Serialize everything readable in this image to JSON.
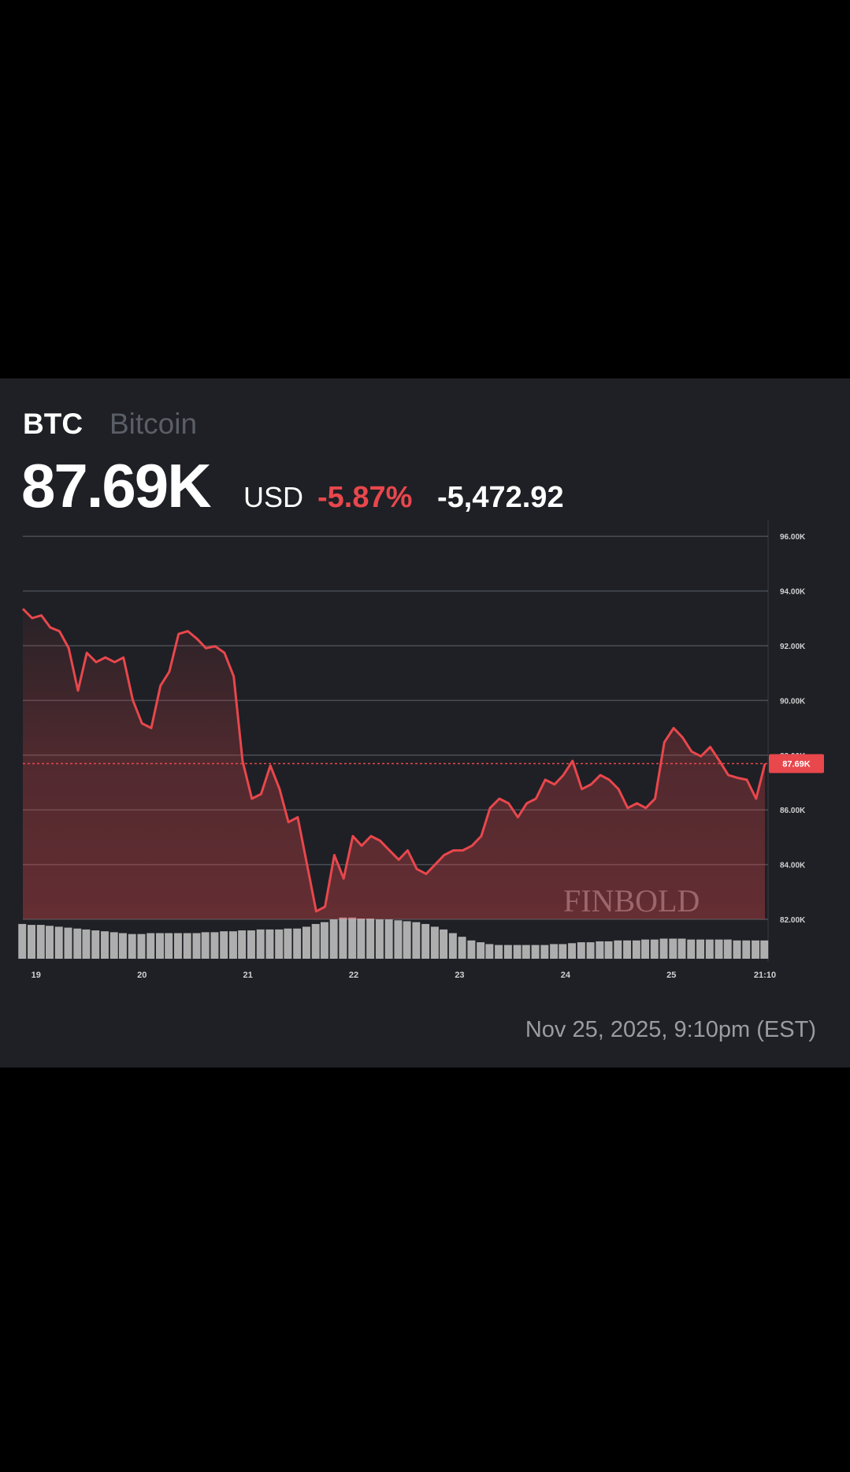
{
  "header": {
    "symbol": "BTC",
    "name": "Bitcoin",
    "price": "87.69K",
    "currency": "USD",
    "change_pct": "-5.87%",
    "change_abs": "-5,472.92"
  },
  "chart_data": {
    "type": "line",
    "x": [
      -3.0,
      -0.9,
      1.2,
      3.2,
      5.3,
      7.4,
      9.5,
      11.5,
      13.6,
      15.7,
      17.8,
      19.8,
      21.9,
      24.0,
      26.1,
      28.2,
      30.2,
      32.3,
      34.4,
      36.5,
      38.5,
      40.6,
      42.7,
      44.8,
      46.8,
      48.9,
      51.0,
      53.1,
      55.2,
      57.2,
      59.3,
      61.4,
      63.5,
      65.5,
      67.6,
      69.7,
      71.8,
      73.8,
      75.9,
      78.0,
      80.1,
      82.2,
      84.2,
      86.3,
      88.4,
      90.5,
      92.5,
      94.6,
      96.7,
      98.8,
      100.9,
      102.9,
      105.0,
      107.1,
      109.2,
      111.2,
      113.3,
      115.4,
      117.5,
      119.5,
      121.6,
      123.7,
      125.8,
      127.9,
      129.9,
      132.0,
      134.1,
      136.2,
      138.2,
      140.3,
      142.4,
      144.5,
      146.5,
      148.6,
      150.7,
      152.8,
      154.9,
      156.9,
      159.0,
      161.1,
      163.2,
      165.2
    ],
    "series": [
      {
        "name": "BTC",
        "color": "#e8474c",
        "values": [
          93350,
          93010,
          93110,
          92670,
          92530,
          91910,
          90360,
          91740,
          91400,
          91570,
          91400,
          91570,
          90020,
          89160,
          88990,
          90540,
          91050,
          92430,
          92530,
          92250,
          91910,
          91980,
          91740,
          90880,
          87790,
          86410,
          86580,
          87620,
          86760,
          85550,
          85730,
          84010,
          82290,
          82460,
          84350,
          83490,
          85040,
          84690,
          85040,
          84870,
          84520,
          84180,
          84520,
          83840,
          83660,
          84010,
          84350,
          84520,
          84520,
          84690,
          85040,
          86070,
          86410,
          86240,
          85730,
          86240,
          86410,
          87100,
          86930,
          87270,
          87790,
          86760,
          86930,
          87270,
          87100,
          86760,
          86070,
          86240,
          86070,
          86410,
          88470,
          88990,
          88650,
          88130,
          87960,
          88300,
          87790,
          87270,
          87170,
          87100,
          86410,
          87690
        ]
      }
    ],
    "volume": {
      "color": "#c8c8c8",
      "values": [
        38,
        37,
        37,
        36,
        35,
        34,
        33,
        32,
        31,
        30,
        29,
        28,
        27,
        27,
        28,
        28,
        28,
        28,
        28,
        28,
        29,
        29,
        30,
        30,
        31,
        31,
        32,
        32,
        32,
        33,
        33,
        35,
        38,
        40,
        43,
        45,
        45,
        44,
        44,
        43,
        43,
        42,
        41,
        40,
        38,
        35,
        32,
        28,
        24,
        20,
        18,
        16,
        15,
        15,
        15,
        15,
        15,
        15,
        16,
        16,
        17,
        18,
        18,
        19,
        19,
        20,
        20,
        20,
        21,
        21,
        22,
        22,
        22,
        21,
        21,
        21,
        21,
        21,
        20,
        20,
        20,
        20
      ]
    },
    "vlim": [
      0,
      50
    ],
    "xlim": [
      -3.0,
      165.2
    ],
    "xticks": [
      {
        "value": 0,
        "label": "19"
      },
      {
        "value": 24,
        "label": "20"
      },
      {
        "value": 48,
        "label": "21"
      },
      {
        "value": 72,
        "label": "22"
      },
      {
        "value": 96,
        "label": "23"
      },
      {
        "value": 120,
        "label": "24"
      },
      {
        "value": 144,
        "label": "25"
      },
      {
        "value": 165.2,
        "label": "21:10"
      }
    ],
    "ylim": [
      81000,
      97000
    ],
    "yticks": [
      {
        "value": 82000,
        "label": "82.00K"
      },
      {
        "value": 84000,
        "label": "84.00K"
      },
      {
        "value": 86000,
        "label": "86.00K"
      },
      {
        "value": 88000,
        "label": "88.00K"
      },
      {
        "value": 90000,
        "label": "90.00K"
      },
      {
        "value": 92000,
        "label": "92.00K"
      },
      {
        "value": 94000,
        "label": "94.00K"
      },
      {
        "value": 96000,
        "label": "96.00K"
      }
    ],
    "price_tag": {
      "value": 87690,
      "label": "87.69K"
    },
    "grid": true,
    "watermark": "FINBOLD"
  },
  "footer": {
    "timestamp": "Nov 25, 2025, 9:10pm (EST)"
  }
}
